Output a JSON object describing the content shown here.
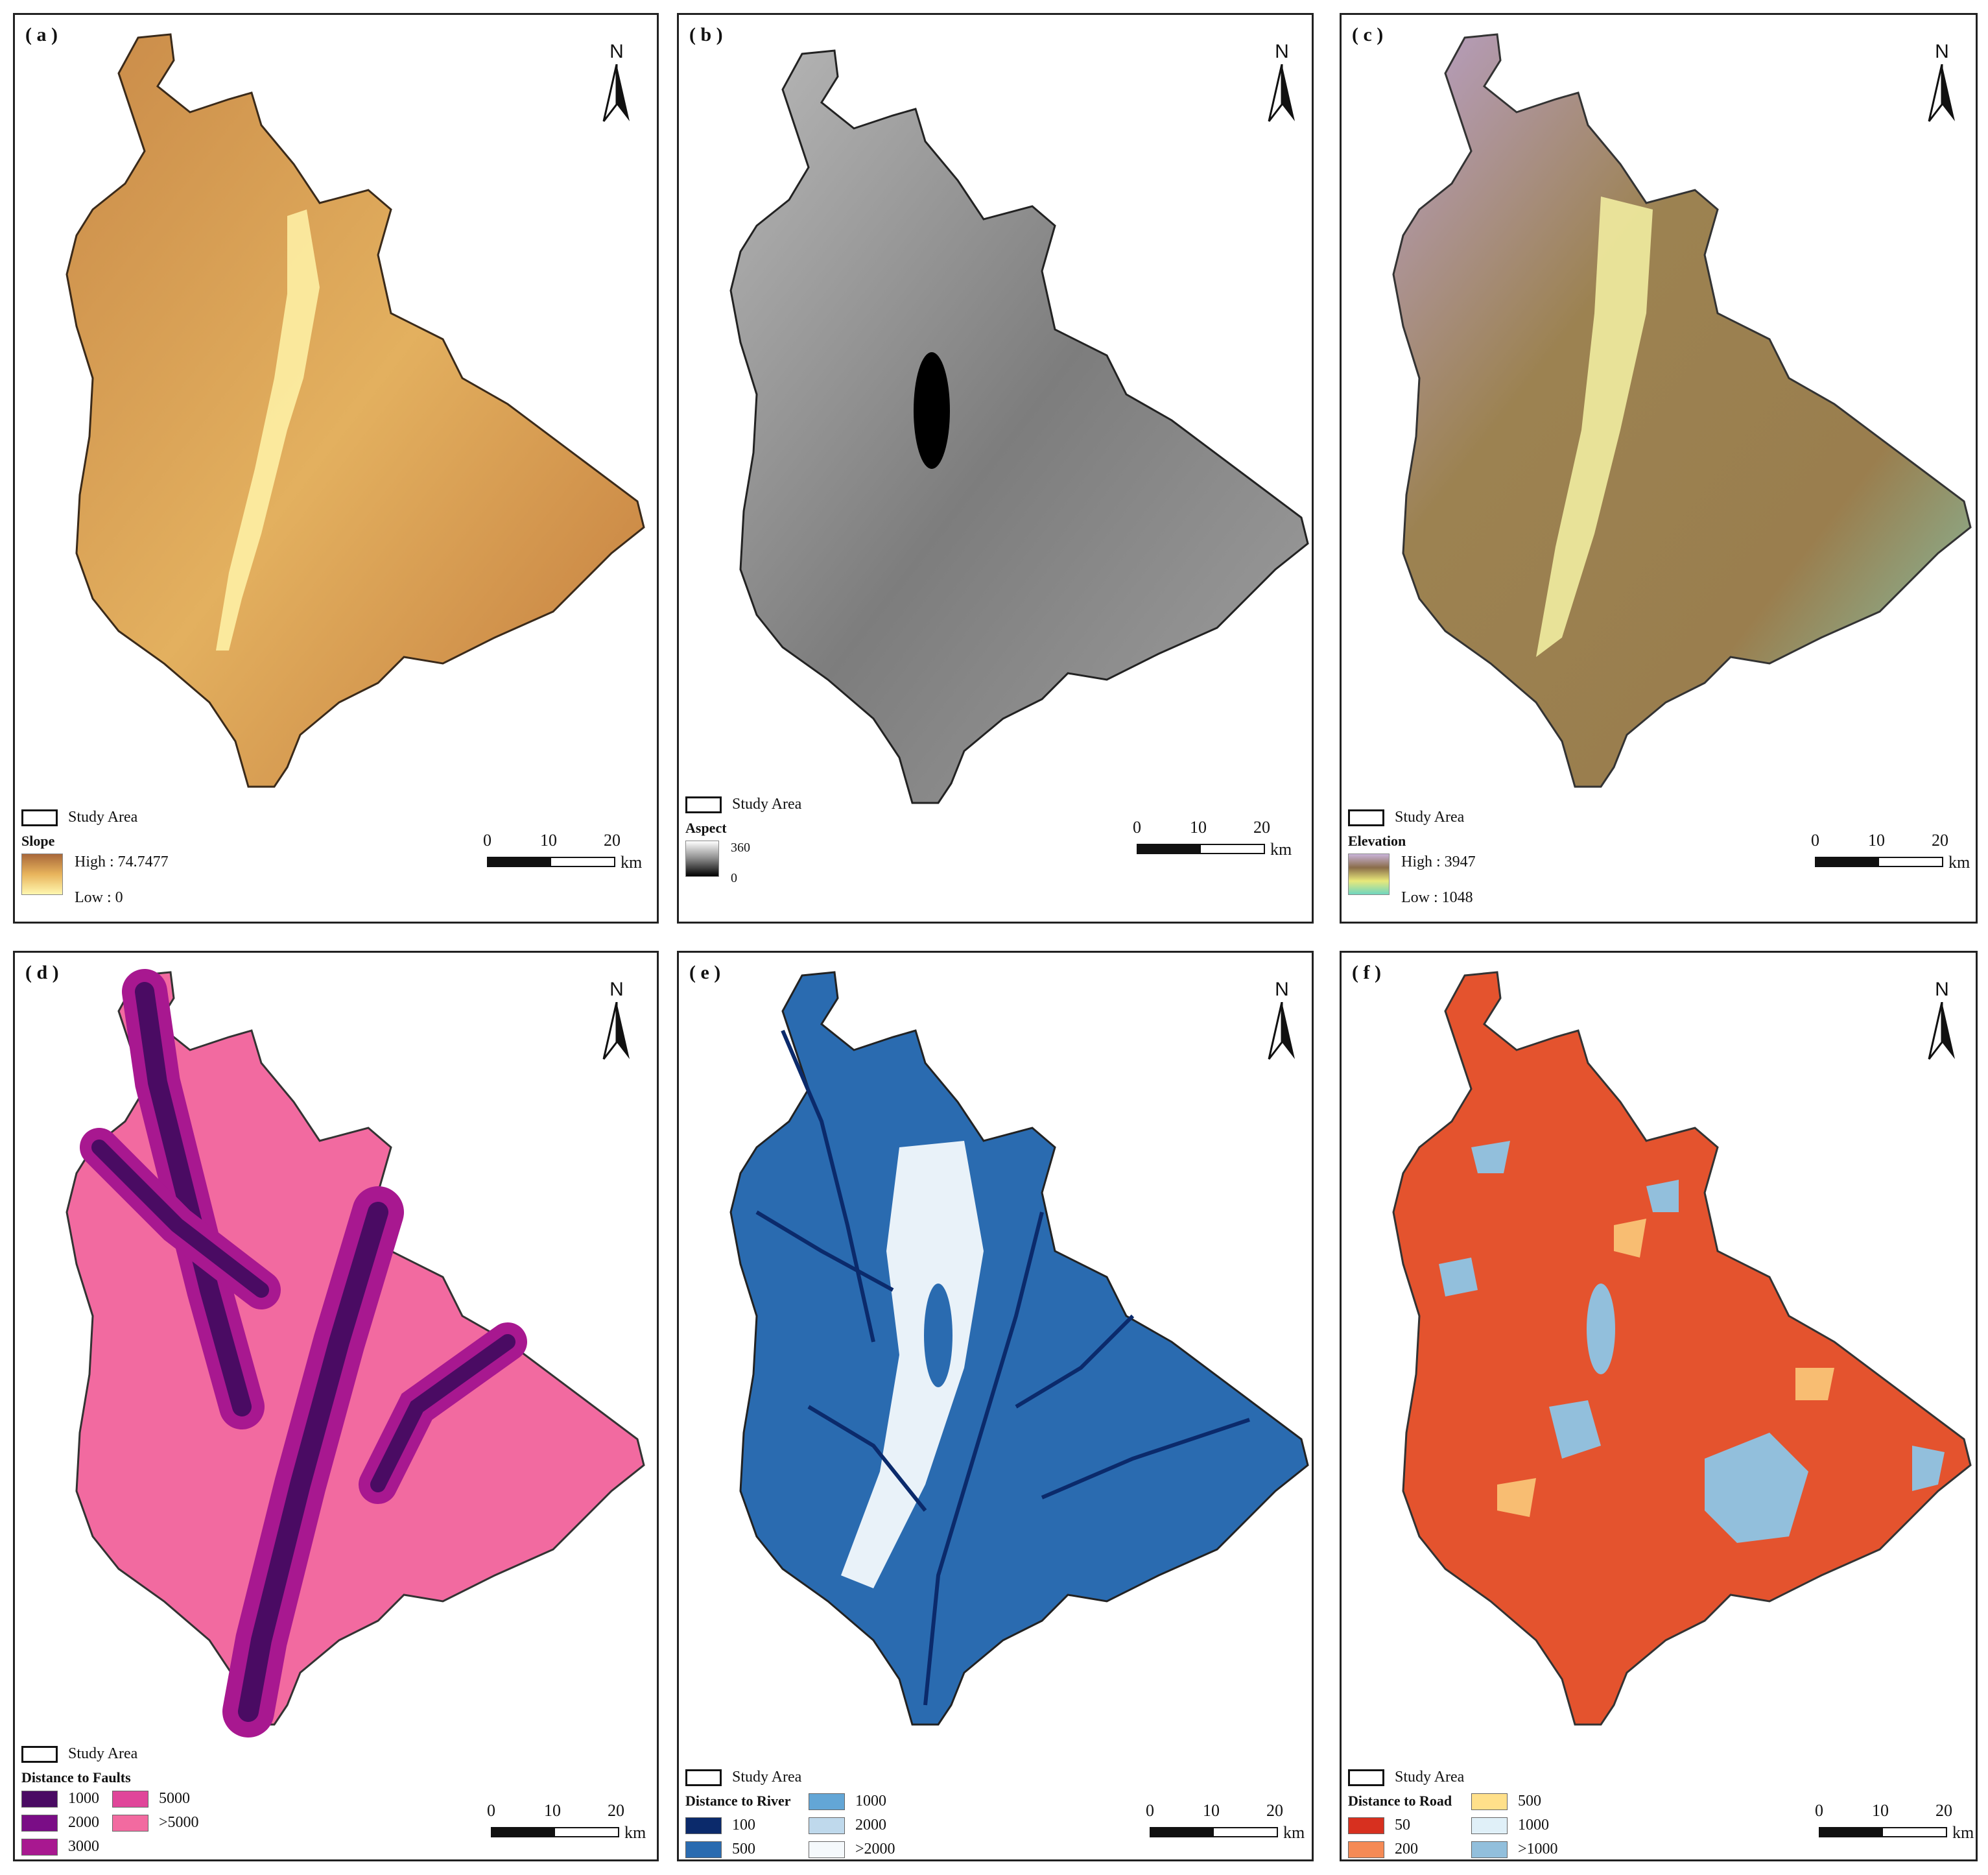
{
  "panels": [
    {
      "id": "a",
      "label": "( a )",
      "legend_type": "gradient",
      "title": "Slope",
      "high": "High : 74.7477",
      "low": "Low : 0",
      "colors": [
        "#a9683a",
        "#e8b45c",
        "#fff7b0"
      ],
      "fill": "#e0a85a"
    },
    {
      "id": "b",
      "label": "( b )",
      "legend_type": "gradient",
      "title": "Aspect",
      "high": "360",
      "low": "0",
      "colors": [
        "#ffffff",
        "#8a8a8a",
        "#000000"
      ],
      "fill": "#8e8e8e"
    },
    {
      "id": "c",
      "label": "( c )",
      "legend_type": "gradient",
      "title": "Elevation",
      "high": "High : 3947",
      "low": "Low : 1048",
      "colors": [
        "#c9b3d9",
        "#8a6d4a",
        "#e8e87a",
        "#6fd6c0"
      ],
      "fill": "#b9a35d"
    },
    {
      "id": "d",
      "label": "( d )",
      "legend_type": "classes",
      "title": "Distance to Faults",
      "classes": [
        {
          "label": "1000",
          "color": "#4a0b63"
        },
        {
          "label": "5000",
          "color": "#e0469a"
        },
        {
          "label": "2000",
          "color": "#7a0d86"
        },
        {
          "label": ">5000",
          "color": "#f26aa0"
        },
        {
          "label": "3000",
          "color": "#a81890"
        }
      ],
      "fill": "#f26aa0"
    },
    {
      "id": "e",
      "label": "( e )",
      "legend_type": "classes",
      "title": "Distance to River",
      "classes": [
        {
          "label": "1000",
          "color": "#63a6d6"
        },
        {
          "label": "100",
          "color": "#0b2a6b"
        },
        {
          "label": "2000",
          "color": "#bfd9ec"
        },
        {
          "label": "500",
          "color": "#2a6bb0"
        },
        {
          "label": ">2000",
          "color": "#f5f9fc"
        }
      ],
      "fill": "#2a6bb0"
    },
    {
      "id": "f",
      "label": "( f )",
      "legend_type": "classes",
      "title": "Distance to Road",
      "classes": [
        {
          "label": "500",
          "color": "#ffe08a"
        },
        {
          "label": "50",
          "color": "#d7301f"
        },
        {
          "label": "1000",
          "color": "#e0f0f8"
        },
        {
          "label": "200",
          "color": "#f58a55"
        },
        {
          "label": ">1000",
          "color": "#92bfdc"
        }
      ],
      "fill": "#e4532e"
    }
  ],
  "north_label": "N",
  "study_area_label": "Study Area",
  "scale": {
    "t0": "0",
    "t10": "10",
    "t20": "20",
    "unit": "km"
  }
}
